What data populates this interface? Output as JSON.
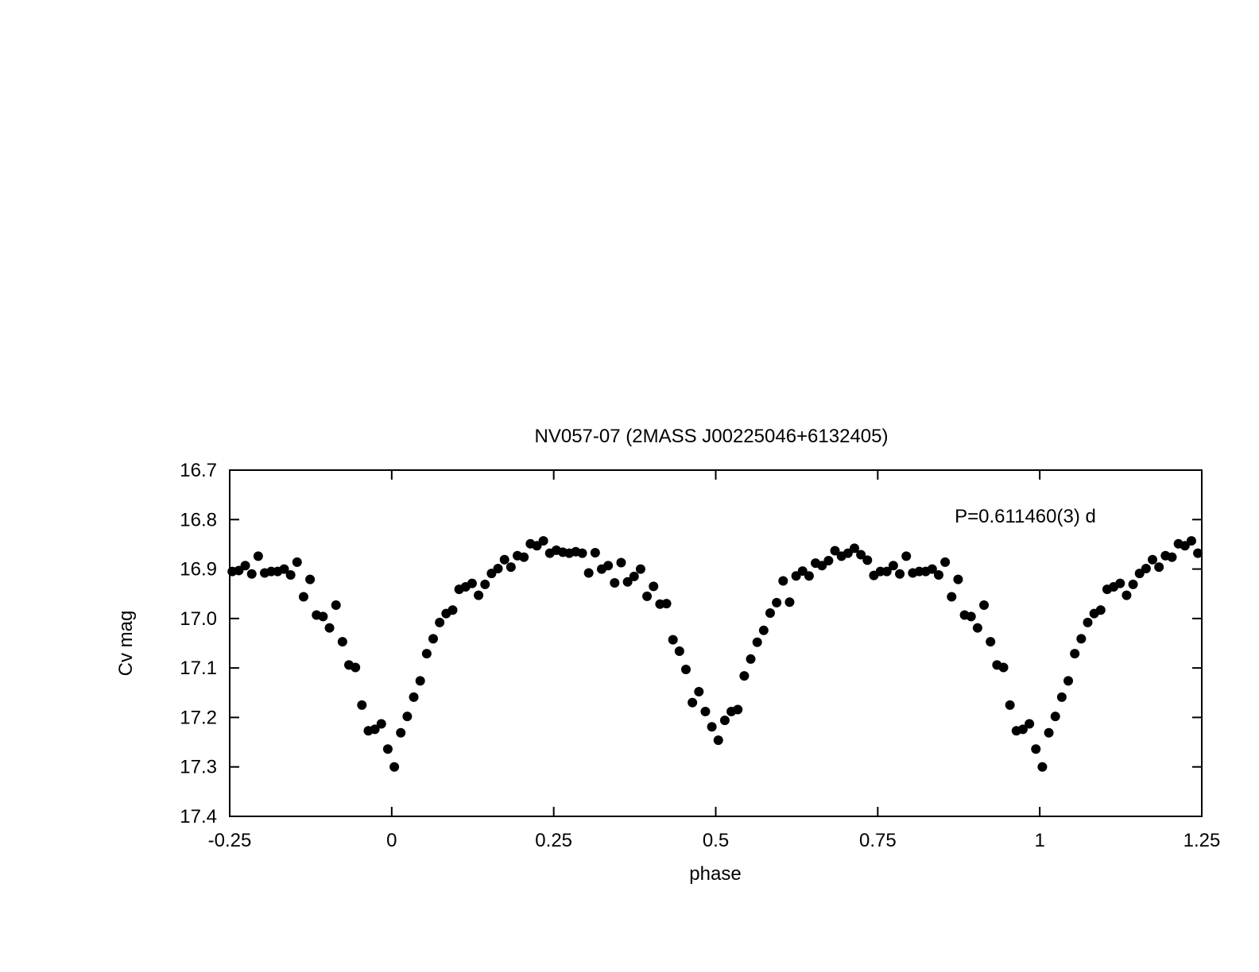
{
  "chart_data": {
    "type": "scatter",
    "title": "NV057-07 (2MASS J00225046+6132405)",
    "xlabel": "phase",
    "ylabel": "Cv mag",
    "annotation": "P=0.611460(3) d",
    "xlim": [
      -0.25,
      1.25
    ],
    "ylim": [
      17.4,
      16.7
    ],
    "y_inverted": true,
    "grid": false,
    "legend": "none",
    "marker_color": "#000000",
    "x_ticks": [
      -0.25,
      0,
      0.25,
      0.5,
      0.75,
      1,
      1.25
    ],
    "x_tick_labels": [
      "-0.25",
      "0",
      "0.25",
      "0.5",
      "0.75",
      "1",
      "1.25"
    ],
    "y_ticks": [
      16.7,
      16.8,
      16.9,
      17.0,
      17.1,
      17.2,
      17.3,
      17.4
    ],
    "y_tick_labels": [
      "16.7",
      "16.8",
      "16.9",
      "17.0",
      "17.1",
      "17.2",
      "17.3",
      "17.4"
    ],
    "series": [
      {
        "points": [
          [
            -0.246,
            16.905
          ],
          [
            -0.236,
            16.903
          ],
          [
            -0.226,
            16.893
          ],
          [
            -0.216,
            16.91
          ],
          [
            -0.206,
            16.874
          ],
          [
            -0.196,
            16.908
          ],
          [
            -0.186,
            16.905
          ],
          [
            -0.176,
            16.905
          ],
          [
            -0.166,
            16.9
          ],
          [
            -0.156,
            16.912
          ],
          [
            -0.146,
            16.886
          ],
          [
            -0.136,
            16.956
          ],
          [
            -0.126,
            16.921
          ],
          [
            -0.116,
            16.993
          ],
          [
            -0.106,
            16.996
          ],
          [
            -0.096,
            17.019
          ],
          [
            -0.086,
            16.973
          ],
          [
            -0.076,
            17.047
          ],
          [
            -0.066,
            17.094
          ],
          [
            -0.056,
            17.099
          ],
          [
            -0.046,
            17.175
          ],
          [
            -0.036,
            17.227
          ],
          [
            -0.026,
            17.224
          ],
          [
            -0.016,
            17.213
          ],
          [
            -0.006,
            17.264
          ],
          [
            0.004,
            17.3
          ],
          [
            0.014,
            17.231
          ],
          [
            0.024,
            17.198
          ],
          [
            0.034,
            17.159
          ],
          [
            0.044,
            17.126
          ],
          [
            0.054,
            17.071
          ],
          [
            0.064,
            17.041
          ],
          [
            0.074,
            17.008
          ],
          [
            0.084,
            16.99
          ],
          [
            0.094,
            16.983
          ],
          [
            0.104,
            16.941
          ],
          [
            0.114,
            16.936
          ],
          [
            0.124,
            16.929
          ],
          [
            0.134,
            16.953
          ],
          [
            0.144,
            16.931
          ],
          [
            0.154,
            16.909
          ],
          [
            0.164,
            16.899
          ],
          [
            0.174,
            16.881
          ],
          [
            0.184,
            16.896
          ],
          [
            0.194,
            16.873
          ],
          [
            0.204,
            16.876
          ],
          [
            0.214,
            16.849
          ],
          [
            0.224,
            16.853
          ],
          [
            0.234,
            16.843
          ],
          [
            0.244,
            16.868
          ],
          [
            0.254,
            16.862
          ],
          [
            0.264,
            16.866
          ],
          [
            0.274,
            16.868
          ],
          [
            0.284,
            16.865
          ],
          [
            0.294,
            16.868
          ],
          [
            0.304,
            16.908
          ],
          [
            0.314,
            16.867
          ],
          [
            0.324,
            16.9
          ],
          [
            0.334,
            16.893
          ],
          [
            0.344,
            16.928
          ],
          [
            0.354,
            16.887
          ],
          [
            0.364,
            16.926
          ],
          [
            0.374,
            16.915
          ],
          [
            0.384,
            16.9
          ],
          [
            0.394,
            16.955
          ],
          [
            0.404,
            16.935
          ],
          [
            0.414,
            16.971
          ],
          [
            0.424,
            16.97
          ],
          [
            0.434,
            17.043
          ],
          [
            0.444,
            17.066
          ],
          [
            0.454,
            17.103
          ],
          [
            0.464,
            17.17
          ],
          [
            0.474,
            17.148
          ],
          [
            0.484,
            17.188
          ],
          [
            0.494,
            17.219
          ],
          [
            0.504,
            17.246
          ],
          [
            0.514,
            17.206
          ],
          [
            0.524,
            17.188
          ],
          [
            0.534,
            17.184
          ],
          [
            0.544,
            17.116
          ],
          [
            0.554,
            17.082
          ],
          [
            0.564,
            17.048
          ],
          [
            0.574,
            17.024
          ],
          [
            0.584,
            16.989
          ],
          [
            0.594,
            16.968
          ],
          [
            0.604,
            16.924
          ],
          [
            0.614,
            16.967
          ],
          [
            0.624,
            16.914
          ],
          [
            0.634,
            16.904
          ],
          [
            0.644,
            16.914
          ],
          [
            0.654,
            16.888
          ],
          [
            0.664,
            16.893
          ],
          [
            0.674,
            16.883
          ],
          [
            0.684,
            16.863
          ],
          [
            0.694,
            16.874
          ],
          [
            0.704,
            16.868
          ],
          [
            0.714,
            16.858
          ],
          [
            0.724,
            16.871
          ],
          [
            0.734,
            16.882
          ],
          [
            0.744,
            16.913
          ],
          [
            0.754,
            16.905
          ],
          [
            0.764,
            16.905
          ],
          [
            0.774,
            16.893
          ],
          [
            0.784,
            16.91
          ],
          [
            0.794,
            16.874
          ],
          [
            0.804,
            16.908
          ],
          [
            0.814,
            16.905
          ],
          [
            0.824,
            16.905
          ],
          [
            0.834,
            16.9
          ],
          [
            0.844,
            16.912
          ],
          [
            0.854,
            16.886
          ],
          [
            0.864,
            16.956
          ],
          [
            0.874,
            16.921
          ],
          [
            0.884,
            16.993
          ],
          [
            0.894,
            16.996
          ],
          [
            0.904,
            17.019
          ],
          [
            0.914,
            16.973
          ],
          [
            0.924,
            17.047
          ],
          [
            0.934,
            17.094
          ],
          [
            0.944,
            17.099
          ],
          [
            0.954,
            17.175
          ],
          [
            0.964,
            17.227
          ],
          [
            0.974,
            17.224
          ],
          [
            0.984,
            17.213
          ],
          [
            0.994,
            17.264
          ],
          [
            1.004,
            17.3
          ],
          [
            1.014,
            17.231
          ],
          [
            1.024,
            17.198
          ],
          [
            1.034,
            17.159
          ],
          [
            1.044,
            17.126
          ],
          [
            1.054,
            17.071
          ],
          [
            1.064,
            17.041
          ],
          [
            1.074,
            17.008
          ],
          [
            1.084,
            16.99
          ],
          [
            1.094,
            16.983
          ],
          [
            1.104,
            16.941
          ],
          [
            1.114,
            16.936
          ],
          [
            1.124,
            16.929
          ],
          [
            1.134,
            16.953
          ],
          [
            1.144,
            16.931
          ],
          [
            1.154,
            16.909
          ],
          [
            1.164,
            16.899
          ],
          [
            1.174,
            16.881
          ],
          [
            1.184,
            16.896
          ],
          [
            1.194,
            16.873
          ],
          [
            1.204,
            16.876
          ],
          [
            1.214,
            16.849
          ],
          [
            1.224,
            16.853
          ],
          [
            1.234,
            16.843
          ],
          [
            1.244,
            16.868
          ]
        ]
      }
    ]
  }
}
